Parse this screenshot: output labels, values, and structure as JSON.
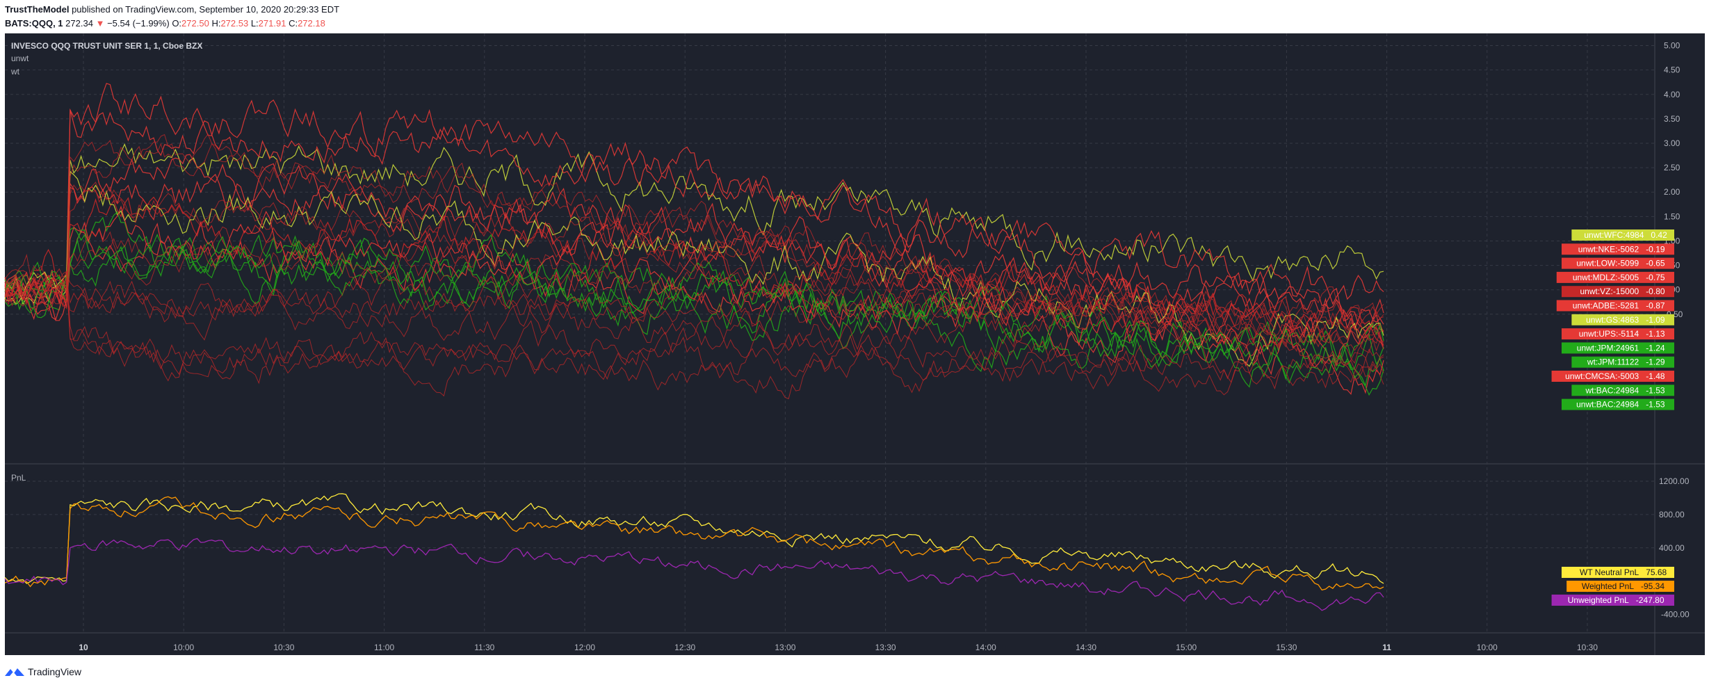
{
  "header": {
    "author": "TrustTheModel",
    "published_text": "published on TradingView.com, September 10, 2020 20:29:33 EDT",
    "symbol": "BATS:QQQ, 1",
    "last": "272.34",
    "change_arrow": "▼",
    "change": "−5.54 (−1.99%)",
    "o_label": "O:",
    "o_value": "272.50",
    "h_label": "H:",
    "h_value": "272.53",
    "l_label": "L:",
    "l_value": "271.91",
    "c_label": "C:",
    "c_value": "272.18"
  },
  "footer": {
    "brand": "TradingView"
  },
  "colors": {
    "background": "#ffffff",
    "plot_bg": "#1e222d",
    "grid": "#363a45",
    "text": "#b2b5be",
    "red": "#e53935",
    "green": "#22ab1a",
    "yellow_green": "#cddc39",
    "yellow": "#ffeb3b",
    "orange": "#ff9800",
    "purple": "#9c27b0"
  },
  "chart_data": [
    {
      "type": "line",
      "title": "INVESCO QQQ TRUST UNIT SER 1, 1, Cboe BZX",
      "legend_labels": [
        "unwt",
        "wt"
      ],
      "ylim": [
        -3.55,
        5.25
      ],
      "y_ticks": [
        "5.00",
        "4.50",
        "4.00",
        "3.50",
        "3.00",
        "2.50",
        "2.00",
        "1.50",
        "1.00",
        "0.50",
        "0.00",
        "-0.50"
      ],
      "x_ticks": [
        "10",
        "10:00",
        "10:30",
        "11:00",
        "11:30",
        "12:00",
        "12:30",
        "13:00",
        "13:30",
        "14:00",
        "14:30",
        "15:00",
        "15:30",
        "11",
        "10:00",
        "10:30"
      ],
      "x_ticks_bold": [
        "10",
        "11"
      ],
      "grid": true,
      "series": [
        {
          "name": "unwt:WFC:4984",
          "value": "0.42",
          "color": "#cddc39"
        },
        {
          "name": "unwt:NKE:-5062",
          "value": "-0.19",
          "color": "#e53935"
        },
        {
          "name": "unwt:LOW:-5099",
          "value": "-0.65",
          "color": "#e53935"
        },
        {
          "name": "unwt:MDLZ:-5005",
          "value": "-0.75",
          "color": "#e53935"
        },
        {
          "name": "unwt:VZ:-15000",
          "value": "-0.80",
          "color": "#c62828"
        },
        {
          "name": "unwt:ADBE:-5281",
          "value": "-0.87",
          "color": "#e53935"
        },
        {
          "name": "unwt:GS:4863",
          "value": "-1.09",
          "color": "#cddc39"
        },
        {
          "name": "unwt:UPS:-5114",
          "value": "-1.13",
          "color": "#e53935"
        },
        {
          "name": "unwt:JPM:24961",
          "value": "-1.24",
          "color": "#22ab1a"
        },
        {
          "name": "wt:JPM:11122",
          "value": "-1.29",
          "color": "#22ab1a"
        },
        {
          "name": "unwt:CMCSA:-5003",
          "value": "-1.48",
          "color": "#e53935"
        },
        {
          "name": "wt:BAC:24984",
          "value": "-1.53",
          "color": "#22ab1a"
        },
        {
          "name": "unwt:BAC:24984",
          "value": "-1.53",
          "color": "#22ab1a"
        }
      ]
    },
    {
      "type": "line",
      "title": "PnL",
      "ylim": [
        -620,
        1400
      ],
      "y_ticks": [
        "1200.00",
        "800.00",
        "400.00"
      ],
      "grid": true,
      "series": [
        {
          "name": "WT Neutral PnL",
          "value": "75.68",
          "color": "#ffeb3b",
          "text_color": "#131722"
        },
        {
          "name": "Weighted PnL",
          "value": "-95.34",
          "color": "#ff9800",
          "text_color": "#131722"
        },
        {
          "name": "Unweighted PnL",
          "value": "-247.80",
          "color": "#9c27b0",
          "text_color": "#ffffff"
        }
      ],
      "last_visible_tick": "-400.00"
    }
  ]
}
